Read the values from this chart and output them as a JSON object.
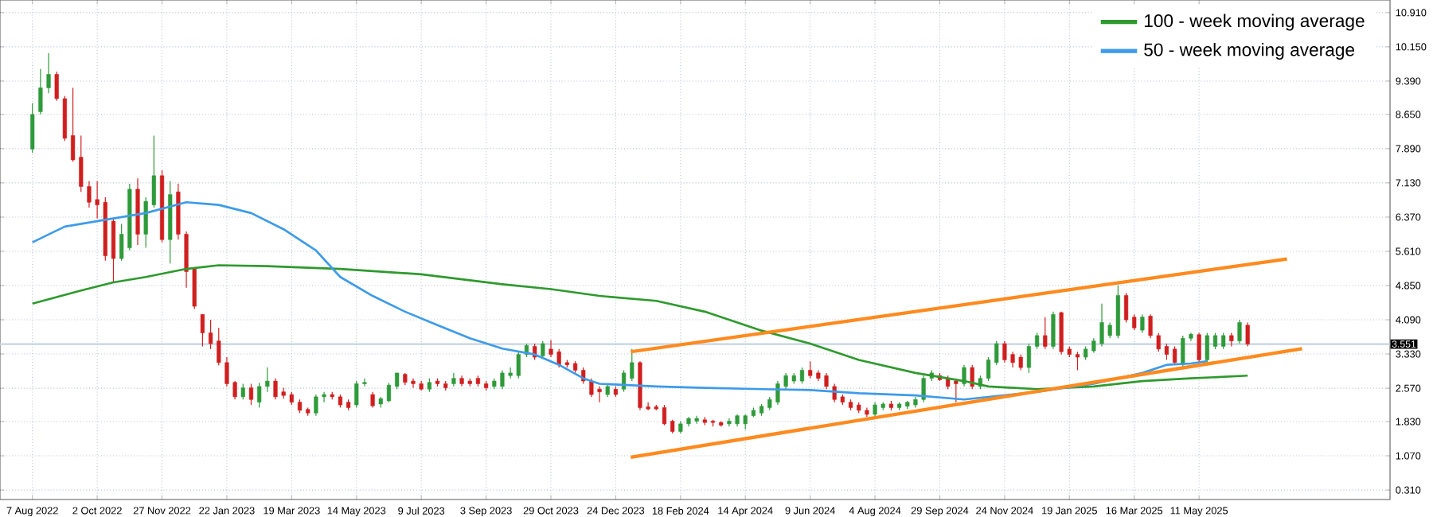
{
  "chart_data": {
    "type": "candlestick",
    "x": [
      "2022-08-07",
      "2022-08-14",
      "2022-08-21",
      "2022-08-28",
      "2022-09-04",
      "2022-09-11",
      "2022-09-18",
      "2022-09-25",
      "2022-10-02",
      "2022-10-09",
      "2022-10-16",
      "2022-10-23",
      "2022-10-30",
      "2022-11-06",
      "2022-11-13",
      "2022-11-20",
      "2022-11-27",
      "2022-12-04",
      "2022-12-11",
      "2022-12-18",
      "2022-12-25",
      "2023-01-01",
      "2023-01-08",
      "2023-01-15",
      "2023-01-22",
      "2023-01-29",
      "2023-02-05",
      "2023-02-12",
      "2023-02-19",
      "2023-02-26",
      "2023-03-05",
      "2023-03-12",
      "2023-03-19",
      "2023-03-26",
      "2023-04-02",
      "2023-04-09",
      "2023-04-16",
      "2023-04-23",
      "2023-04-30",
      "2023-05-07",
      "2023-05-14",
      "2023-05-21",
      "2023-05-28",
      "2023-06-04",
      "2023-06-11",
      "2023-06-18",
      "2023-06-25",
      "2023-07-02",
      "2023-07-09",
      "2023-07-16",
      "2023-07-23",
      "2023-07-30",
      "2023-08-06",
      "2023-08-13",
      "2023-08-20",
      "2023-08-27",
      "2023-09-03",
      "2023-09-10",
      "2023-09-17",
      "2023-09-24",
      "2023-10-01",
      "2023-10-08",
      "2023-10-15",
      "2023-10-22",
      "2023-10-29",
      "2023-11-05",
      "2023-11-12",
      "2023-11-19",
      "2023-11-26",
      "2023-12-03",
      "2023-12-10",
      "2023-12-17",
      "2023-12-24",
      "2023-12-31",
      "2024-01-07",
      "2024-01-14",
      "2024-01-21",
      "2024-01-28",
      "2024-02-04",
      "2024-02-11",
      "2024-02-18",
      "2024-02-25",
      "2024-03-03",
      "2024-03-10",
      "2024-03-17",
      "2024-03-24",
      "2024-03-31",
      "2024-04-07",
      "2024-04-14",
      "2024-04-21",
      "2024-04-28",
      "2024-05-05",
      "2024-05-12",
      "2024-05-19",
      "2024-05-26",
      "2024-06-02",
      "2024-06-09",
      "2024-06-16",
      "2024-06-23",
      "2024-06-30",
      "2024-07-07",
      "2024-07-14",
      "2024-07-21",
      "2024-07-28",
      "2024-08-04",
      "2024-08-11",
      "2024-08-18",
      "2024-08-25",
      "2024-09-01",
      "2024-09-08",
      "2024-09-15",
      "2024-09-22",
      "2024-09-29",
      "2024-10-06",
      "2024-10-13",
      "2024-10-20",
      "2024-10-27",
      "2024-11-03",
      "2024-11-10",
      "2024-11-17",
      "2024-11-24",
      "2024-12-01",
      "2024-12-08",
      "2024-12-15",
      "2024-12-22",
      "2024-12-29",
      "2025-01-05",
      "2025-01-12",
      "2025-01-19",
      "2025-01-26",
      "2025-02-02",
      "2025-02-09",
      "2025-02-16",
      "2025-02-23",
      "2025-03-02",
      "2025-03-09",
      "2025-03-16",
      "2025-03-23",
      "2025-03-30",
      "2025-04-06",
      "2025-04-13",
      "2025-04-20",
      "2025-04-27",
      "2025-05-04",
      "2025-05-11",
      "2025-05-18",
      "2025-05-25",
      "2025-06-01",
      "2025-06-08",
      "2025-06-15",
      "2025-06-22"
    ],
    "ohlc": [
      [
        7.88,
        8.9,
        7.8,
        8.65
      ],
      [
        8.71,
        9.66,
        8.65,
        9.24
      ],
      [
        9.24,
        10.01,
        9.12,
        9.54
      ],
      [
        9.54,
        9.6,
        8.95,
        9.0
      ],
      [
        9.0,
        9.06,
        8.06,
        8.12
      ],
      [
        8.18,
        9.24,
        7.6,
        7.64
      ],
      [
        7.7,
        8.18,
        6.93,
        7.05
      ],
      [
        7.05,
        7.17,
        6.58,
        6.7
      ],
      [
        6.76,
        7.17,
        6.34,
        6.64
      ],
      [
        6.7,
        6.81,
        5.4,
        5.51
      ],
      [
        6.28,
        6.34,
        4.92,
        5.45
      ],
      [
        5.45,
        6.22,
        5.4,
        5.99
      ],
      [
        5.69,
        7.11,
        5.63,
        6.99
      ],
      [
        6.99,
        7.23,
        5.75,
        5.99
      ],
      [
        5.99,
        6.81,
        5.69,
        6.72
      ],
      [
        6.64,
        8.18,
        6.58,
        7.29
      ],
      [
        7.29,
        7.41,
        5.81,
        5.87
      ],
      [
        5.87,
        7.17,
        5.34,
        6.87
      ],
      [
        6.93,
        7.11,
        5.87,
        5.99
      ],
      [
        5.99,
        6.05,
        4.8,
        5.16
      ],
      [
        5.22,
        5.22,
        4.33,
        4.39
      ],
      [
        4.21,
        4.21,
        3.5,
        3.8
      ],
      [
        3.8,
        4.09,
        3.44,
        3.56
      ],
      [
        3.62,
        3.91,
        3.08,
        3.14
      ],
      [
        3.14,
        3.26,
        2.61,
        2.67
      ],
      [
        2.7,
        2.73,
        2.32,
        2.38
      ],
      [
        2.38,
        2.67,
        2.32,
        2.58
      ],
      [
        2.58,
        2.67,
        2.2,
        2.32
      ],
      [
        2.26,
        2.69,
        2.14,
        2.61
      ],
      [
        2.61,
        3.03,
        2.49,
        2.73
      ],
      [
        2.73,
        2.79,
        2.32,
        2.38
      ],
      [
        2.49,
        2.58,
        2.34,
        2.41
      ],
      [
        2.43,
        2.49,
        2.2,
        2.26
      ],
      [
        2.26,
        2.32,
        2.02,
        2.08
      ],
      [
        2.1,
        2.14,
        1.96,
        2.02
      ],
      [
        2.02,
        2.43,
        1.96,
        2.38
      ],
      [
        2.38,
        2.49,
        2.26,
        2.43
      ],
      [
        2.43,
        2.49,
        2.32,
        2.38
      ],
      [
        2.38,
        2.43,
        2.14,
        2.2
      ],
      [
        2.26,
        2.32,
        2.08,
        2.14
      ],
      [
        2.2,
        2.73,
        2.14,
        2.67
      ],
      [
        2.67,
        2.79,
        2.61,
        2.7
      ],
      [
        2.43,
        2.49,
        2.14,
        2.18
      ],
      [
        2.22,
        2.38,
        2.14,
        2.34
      ],
      [
        2.29,
        2.69,
        2.26,
        2.64
      ],
      [
        2.61,
        2.91,
        2.55,
        2.91
      ],
      [
        2.88,
        2.91,
        2.64,
        2.7
      ],
      [
        2.73,
        2.79,
        2.58,
        2.67
      ],
      [
        2.67,
        2.73,
        2.52,
        2.55
      ],
      [
        2.55,
        2.79,
        2.49,
        2.7
      ],
      [
        2.73,
        2.79,
        2.61,
        2.67
      ],
      [
        2.67,
        2.73,
        2.52,
        2.58
      ],
      [
        2.67,
        2.91,
        2.61,
        2.79
      ],
      [
        2.79,
        2.85,
        2.61,
        2.67
      ],
      [
        2.73,
        2.79,
        2.61,
        2.67
      ],
      [
        2.79,
        2.85,
        2.61,
        2.67
      ],
      [
        2.67,
        2.73,
        2.52,
        2.58
      ],
      [
        2.61,
        2.79,
        2.55,
        2.73
      ],
      [
        2.61,
        2.97,
        2.55,
        2.91
      ],
      [
        2.85,
        3.03,
        2.79,
        2.91
      ],
      [
        2.85,
        3.38,
        2.79,
        3.32
      ],
      [
        3.32,
        3.56,
        3.26,
        3.52
      ],
      [
        3.5,
        3.56,
        3.2,
        3.26
      ],
      [
        3.29,
        3.62,
        3.26,
        3.56
      ],
      [
        3.44,
        3.64,
        3.26,
        3.32
      ],
      [
        3.38,
        3.44,
        3.03,
        3.09
      ],
      [
        3.14,
        3.2,
        3.03,
        3.09
      ],
      [
        3.12,
        3.17,
        2.91,
        2.97
      ],
      [
        2.97,
        3.03,
        2.67,
        2.73
      ],
      [
        2.73,
        2.79,
        2.38,
        2.43
      ],
      [
        2.55,
        2.61,
        2.26,
        2.49
      ],
      [
        2.43,
        2.67,
        2.38,
        2.61
      ],
      [
        2.55,
        2.61,
        2.38,
        2.43
      ],
      [
        2.55,
        2.97,
        2.49,
        2.91
      ],
      [
        2.79,
        3.44,
        2.73,
        3.14
      ],
      [
        3.14,
        3.17,
        2.08,
        2.14
      ],
      [
        2.16,
        2.26,
        2.08,
        2.11
      ],
      [
        2.16,
        2.2,
        2.08,
        2.11
      ],
      [
        2.14,
        2.2,
        1.75,
        1.78
      ],
      [
        1.84,
        1.87,
        1.57,
        1.61
      ],
      [
        1.61,
        1.84,
        1.57,
        1.78
      ],
      [
        1.78,
        1.93,
        1.72,
        1.9
      ],
      [
        1.84,
        1.96,
        1.78,
        1.9
      ],
      [
        1.87,
        1.93,
        1.75,
        1.81
      ],
      [
        1.84,
        1.87,
        1.72,
        1.81
      ],
      [
        1.81,
        1.84,
        1.72,
        1.75
      ],
      [
        1.78,
        1.9,
        1.72,
        1.84
      ],
      [
        1.78,
        1.99,
        1.72,
        1.96
      ],
      [
        1.78,
        1.99,
        1.66,
        1.96
      ],
      [
        1.96,
        2.14,
        1.93,
        2.08
      ],
      [
        2.02,
        2.22,
        1.96,
        2.17
      ],
      [
        2.14,
        2.38,
        2.08,
        2.32
      ],
      [
        2.26,
        2.73,
        2.2,
        2.67
      ],
      [
        2.61,
        2.91,
        2.55,
        2.85
      ],
      [
        2.73,
        2.91,
        2.67,
        2.85
      ],
      [
        2.73,
        3.03,
        2.67,
        2.97
      ],
      [
        2.97,
        3.17,
        2.79,
        2.85
      ],
      [
        2.91,
        2.97,
        2.73,
        2.79
      ],
      [
        2.85,
        2.91,
        2.55,
        2.61
      ],
      [
        2.61,
        2.67,
        2.26,
        2.32
      ],
      [
        2.38,
        2.43,
        2.2,
        2.26
      ],
      [
        2.26,
        2.32,
        2.08,
        2.14
      ],
      [
        2.2,
        2.26,
        2.02,
        2.08
      ],
      [
        2.08,
        2.14,
        1.93,
        1.99
      ],
      [
        1.99,
        2.26,
        1.93,
        2.2
      ],
      [
        2.14,
        2.26,
        2.08,
        2.22
      ],
      [
        2.22,
        2.29,
        2.08,
        2.14
      ],
      [
        2.14,
        2.26,
        2.08,
        2.22
      ],
      [
        2.17,
        2.29,
        2.11,
        2.26
      ],
      [
        2.2,
        2.38,
        2.14,
        2.32
      ],
      [
        2.32,
        2.85,
        2.26,
        2.79
      ],
      [
        2.79,
        2.97,
        2.73,
        2.91
      ],
      [
        2.85,
        2.91,
        2.73,
        2.76
      ],
      [
        2.79,
        2.85,
        2.55,
        2.61
      ],
      [
        2.73,
        2.79,
        2.26,
        2.67
      ],
      [
        2.67,
        3.09,
        2.61,
        3.03
      ],
      [
        3.03,
        3.09,
        2.55,
        2.61
      ],
      [
        2.61,
        2.85,
        2.55,
        2.79
      ],
      [
        2.79,
        3.26,
        2.73,
        3.2
      ],
      [
        3.14,
        3.62,
        3.09,
        3.56
      ],
      [
        3.56,
        3.62,
        3.14,
        3.2
      ],
      [
        3.32,
        3.38,
        3.03,
        3.14
      ],
      [
        3.26,
        3.32,
        2.97,
        3.03
      ],
      [
        3.03,
        3.56,
        2.91,
        3.5
      ],
      [
        3.5,
        3.8,
        3.44,
        3.74
      ],
      [
        3.74,
        4.15,
        3.44,
        3.5
      ],
      [
        3.5,
        4.27,
        3.44,
        4.21
      ],
      [
        4.25,
        4.27,
        3.32,
        3.38
      ],
      [
        3.44,
        3.5,
        3.26,
        3.32
      ],
      [
        3.32,
        3.38,
        2.97,
        3.26
      ],
      [
        3.26,
        3.5,
        3.2,
        3.44
      ],
      [
        3.4,
        3.68,
        3.36,
        3.62
      ],
      [
        3.56,
        4.45,
        3.5,
        4.03
      ],
      [
        3.74,
        4.03,
        3.68,
        3.97
      ],
      [
        3.74,
        4.86,
        3.68,
        4.63
      ],
      [
        4.63,
        4.69,
        4.03,
        4.09
      ],
      [
        4.15,
        4.21,
        3.86,
        3.91
      ],
      [
        3.86,
        4.21,
        3.8,
        4.15
      ],
      [
        4.17,
        4.21,
        3.68,
        3.74
      ],
      [
        3.74,
        3.8,
        3.38,
        3.44
      ],
      [
        3.5,
        3.56,
        3.2,
        3.32
      ],
      [
        3.44,
        3.5,
        3.09,
        3.14
      ],
      [
        3.09,
        3.74,
        3.03,
        3.68
      ],
      [
        3.68,
        3.8,
        3.62,
        3.77
      ],
      [
        3.76,
        3.8,
        3.14,
        3.2
      ],
      [
        3.2,
        3.8,
        3.14,
        3.74
      ],
      [
        3.5,
        3.8,
        3.44,
        3.74
      ],
      [
        3.5,
        3.8,
        3.44,
        3.74
      ],
      [
        3.74,
        3.8,
        3.5,
        3.62
      ],
      [
        3.62,
        4.09,
        3.56,
        4.03
      ],
      [
        3.97,
        4.03,
        3.5,
        3.55
      ]
    ],
    "colors": [
      "#2f9a3a",
      "#2f9a3a",
      "#2f9a3a",
      "#d01f1f",
      "#d01f1f",
      "#d01f1f",
      "#d01f1f",
      "#d01f1f",
      "#d01f1f",
      "#d01f1f",
      "#d01f1f",
      "#2f9a3a",
      "#2f9a3a",
      "#d01f1f",
      "#2f9a3a",
      "#2f9a3a",
      "#d01f1f",
      "#2f9a3a",
      "#d01f1f",
      "#d01f1f",
      "#d01f1f",
      "#d01f1f",
      "#d01f1f",
      "#d01f1f",
      "#d01f1f",
      "#d01f1f",
      "#2f9a3a",
      "#d01f1f",
      "#2f9a3a",
      "#2f9a3a",
      "#d01f1f",
      "#d01f1f",
      "#d01f1f",
      "#d01f1f",
      "#d01f1f",
      "#2f9a3a",
      "#2f9a3a",
      "#d01f1f",
      "#d01f1f",
      "#d01f1f",
      "#2f9a3a",
      "#2f9a3a",
      "#d01f1f",
      "#2f9a3a",
      "#2f9a3a",
      "#2f9a3a",
      "#d01f1f",
      "#d01f1f",
      "#d01f1f",
      "#2f9a3a",
      "#d01f1f",
      "#d01f1f",
      "#2f9a3a",
      "#d01f1f",
      "#d01f1f",
      "#d01f1f",
      "#d01f1f",
      "#2f9a3a",
      "#2f9a3a",
      "#2f9a3a",
      "#2f9a3a",
      "#2f9a3a",
      "#d01f1f",
      "#2f9a3a",
      "#d01f1f",
      "#d01f1f",
      "#d01f1f",
      "#d01f1f",
      "#d01f1f",
      "#d01f1f",
      "#d01f1f",
      "#2f9a3a",
      "#d01f1f",
      "#2f9a3a",
      "#2f9a3a",
      "#d01f1f",
      "#d01f1f",
      "#d01f1f",
      "#d01f1f",
      "#d01f1f",
      "#2f9a3a",
      "#2f9a3a",
      "#2f9a3a",
      "#d01f1f",
      "#d01f1f",
      "#d01f1f",
      "#2f9a3a",
      "#2f9a3a",
      "#2f9a3a",
      "#2f9a3a",
      "#2f9a3a",
      "#2f9a3a",
      "#2f9a3a",
      "#2f9a3a",
      "#2f9a3a",
      "#2f9a3a",
      "#d01f1f",
      "#d01f1f",
      "#d01f1f",
      "#d01f1f",
      "#d01f1f",
      "#d01f1f",
      "#d01f1f",
      "#d01f1f",
      "#2f9a3a",
      "#2f9a3a",
      "#d01f1f",
      "#2f9a3a",
      "#2f9a3a",
      "#2f9a3a",
      "#2f9a3a",
      "#2f9a3a",
      "#d01f1f",
      "#d01f1f",
      "#d01f1f",
      "#2f9a3a",
      "#d01f1f",
      "#2f9a3a",
      "#2f9a3a",
      "#2f9a3a",
      "#d01f1f",
      "#d01f1f",
      "#d01f1f",
      "#2f9a3a",
      "#2f9a3a",
      "#d01f1f",
      "#2f9a3a",
      "#d01f1f",
      "#d01f1f",
      "#d01f1f",
      "#2f9a3a",
      "#2f9a3a",
      "#2f9a3a",
      "#2f9a3a",
      "#2f9a3a",
      "#d01f1f",
      "#d01f1f",
      "#2f9a3a",
      "#d01f1f",
      "#d01f1f",
      "#d01f1f",
      "#d01f1f",
      "#2f9a3a",
      "#2f9a3a",
      "#d01f1f",
      "#2f9a3a",
      "#2f9a3a",
      "#2f9a3a",
      "#d01f1f",
      "#2f9a3a",
      "#d01f1f"
    ],
    "series": [
      {
        "type": "line",
        "name": "100 - week moving average",
        "color": "#2e9a2e",
        "x": [
          "2022-08-07",
          "2022-09-18",
          "2022-10-16",
          "2022-11-13",
          "2022-12-18",
          "2023-01-15",
          "2023-02-26",
          "2023-04-30",
          "2023-07-09",
          "2023-09-17",
          "2023-10-29",
          "2023-12-10",
          "2024-01-28",
          "2024-03-10",
          "2024-04-28",
          "2024-06-09",
          "2024-07-21",
          "2024-09-08",
          "2024-10-20",
          "2024-11-10",
          "2024-12-22",
          "2025-02-09",
          "2025-03-23",
          "2025-05-04",
          "2025-06-22"
        ],
        "values": [
          4.45,
          4.74,
          4.92,
          5.04,
          5.22,
          5.3,
          5.28,
          5.22,
          5.1,
          4.88,
          4.77,
          4.62,
          4.51,
          4.27,
          3.85,
          3.56,
          3.2,
          2.91,
          2.73,
          2.61,
          2.55,
          2.61,
          2.73,
          2.79,
          2.85
        ]
      },
      {
        "type": "line",
        "name": "50 - week moving average",
        "color": "#3d9be9",
        "x": [
          "2022-08-07",
          "2022-09-04",
          "2022-10-16",
          "2022-11-13",
          "2022-12-18",
          "2023-01-15",
          "2023-02-12",
          "2023-03-12",
          "2023-04-09",
          "2023-04-30",
          "2023-05-28",
          "2023-06-25",
          "2023-07-23",
          "2023-08-20",
          "2023-09-17",
          "2023-10-15",
          "2023-11-05",
          "2023-11-26",
          "2023-12-10",
          "2024-01-28",
          "2024-03-10",
          "2024-04-28",
          "2024-06-09",
          "2024-07-21",
          "2024-09-08",
          "2024-10-20",
          "2024-11-10",
          "2024-12-22",
          "2025-02-09",
          "2025-03-23",
          "2025-04-13",
          "2025-05-04",
          "2025-05-18"
        ],
        "values": [
          5.81,
          6.16,
          6.34,
          6.46,
          6.7,
          6.64,
          6.46,
          6.1,
          5.63,
          5.04,
          4.62,
          4.27,
          3.97,
          3.68,
          3.45,
          3.32,
          3.09,
          2.79,
          2.67,
          2.61,
          2.58,
          2.55,
          2.53,
          2.46,
          2.41,
          2.32,
          null,
          2.49,
          2.67,
          2.91,
          3.09,
          3.12,
          3.17
        ]
      },
      {
        "type": "line",
        "color": "#ff8a1e",
        "x": [
          "2024-01-06",
          "2025-07-26"
        ],
        "values": [
          3.38,
          5.44
        ]
      },
      {
        "type": "line",
        "color": "#ff8a1e",
        "x": [
          "2024-01-06",
          "2025-08-08"
        ],
        "values": [
          1.04,
          3.45
        ]
      }
    ],
    "xlim": [
      "2022-07-10",
      "2025-10-23"
    ],
    "xticks": [
      {
        "value": "2022-08-07",
        "label": "7 Aug 2022"
      },
      {
        "value": "2022-10-02",
        "label": "2 Oct 2022"
      },
      {
        "value": "2022-11-27",
        "label": "27 Nov 2022"
      },
      {
        "value": "2023-01-22",
        "label": "22 Jan 2023"
      },
      {
        "value": "2023-03-19",
        "label": "19 Mar 2023"
      },
      {
        "value": "2023-05-14",
        "label": "14 May 2023"
      },
      {
        "value": "2023-07-09",
        "label": "9 Jul 2023"
      },
      {
        "value": "2023-09-03",
        "label": "3 Sep 2023"
      },
      {
        "value": "2023-10-29",
        "label": "29 Oct 2023"
      },
      {
        "value": "2023-12-24",
        "label": "24 Dec 2023"
      },
      {
        "value": "2024-02-18",
        "label": "18 Feb 2024"
      },
      {
        "value": "2024-04-14",
        "label": "14 Apr 2024"
      },
      {
        "value": "2024-06-09",
        "label": "9 Jun 2024"
      },
      {
        "value": "2024-08-04",
        "label": "4 Aug 2024"
      },
      {
        "value": "2024-09-29",
        "label": "29 Sep 2024"
      },
      {
        "value": "2024-11-24",
        "label": "24 Nov 2024"
      },
      {
        "value": "2025-01-19",
        "label": "19 Jan 2025"
      },
      {
        "value": "2025-03-16",
        "label": "16 Mar 2025"
      },
      {
        "value": "2025-05-11",
        "label": "11 May 2025"
      }
    ],
    "ylim": [
      0.1,
      11.19
    ],
    "yticks": [
      {
        "value": 0.31,
        "label": "0.310"
      },
      {
        "value": 1.07,
        "label": "1.070"
      },
      {
        "value": 1.83,
        "label": "1.830"
      },
      {
        "value": 2.57,
        "label": "2.570"
      },
      {
        "value": 3.33,
        "label": "3.330"
      },
      {
        "value": 4.09,
        "label": "4.090"
      },
      {
        "value": 4.85,
        "label": "4.850"
      },
      {
        "value": 5.61,
        "label": "5.610"
      },
      {
        "value": 6.37,
        "label": "6.370"
      },
      {
        "value": 7.13,
        "label": "7.130"
      },
      {
        "value": 7.89,
        "label": "7.890"
      },
      {
        "value": 8.65,
        "label": "8.650"
      },
      {
        "value": 9.39,
        "label": "9.390"
      },
      {
        "value": 10.15,
        "label": "10.150"
      },
      {
        "value": 10.91,
        "label": "10.910"
      }
    ],
    "ref_lines": [
      {
        "axis": "y",
        "value": 3.551,
        "label": "3.551",
        "color": "#c6d3e3"
      }
    ],
    "grid": true,
    "legend": "top right"
  }
}
